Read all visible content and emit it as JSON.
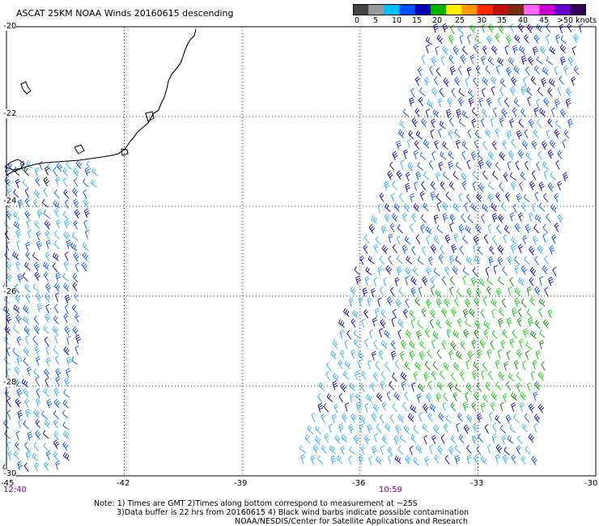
{
  "title": "ASCAT 25KM NOAA Winds 20160615 descending",
  "colorbar": {
    "labels": [
      "0",
      "5",
      "10",
      "15",
      "20",
      "25",
      "30",
      "35",
      "40",
      "45",
      ">50 knots"
    ],
    "colors": [
      "#444444",
      "#9a9a9a",
      "#00c0ff",
      "#0050ff",
      "#0000b0",
      "#00b400",
      "#ffee00",
      "#ff9900",
      "#ff2a00",
      "#c01010",
      "#7a2a10",
      "#ff66ff",
      "#cc00cc",
      "#6600cc",
      "#33005a"
    ]
  },
  "map": {
    "lon_ticks": [
      "-45",
      "-42",
      "-39",
      "-36",
      "-33",
      "-30"
    ],
    "lat_ticks": [
      "-20",
      "-22",
      "-24",
      "-26",
      "-28",
      "-30"
    ],
    "time_left": "12:40",
    "time_right": "10:59",
    "barb_colors": {
      "light_blue": "#22aaff",
      "blue": "#0050ee",
      "dark_blue": "#0000aa",
      "green": "#00cc00",
      "dark_green": "#008800",
      "black": "#000000"
    }
  },
  "notes": {
    "line1": "Note: 1) Times are GMT 2)Times along bottom correspond to measurement at ~25S",
    "line2": "3)Data buffer is 22 hrs from 20160615 4) Black wind barbs indicate possible contamination",
    "line3": "NOAA/NESDIS/Center for Satellite Applications and Research"
  }
}
